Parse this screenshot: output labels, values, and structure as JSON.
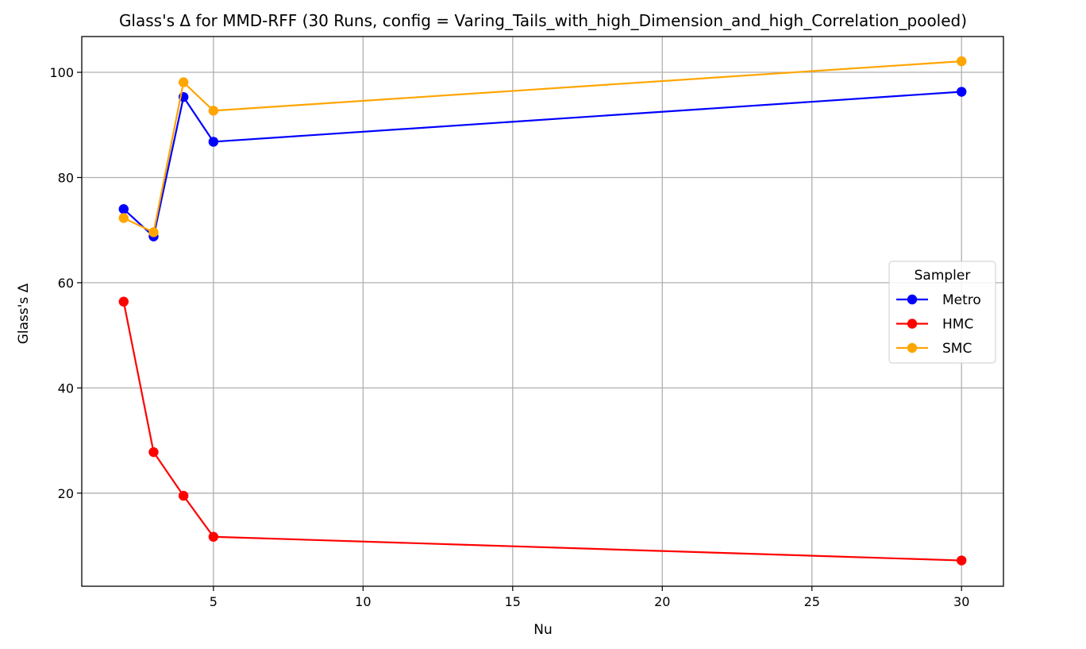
{
  "chart_data": {
    "type": "line",
    "title": "Glass's Δ for MMD-RFF (30 Runs, config = Varing_Tails_with_high_Dimension_and_high_Correlation_pooled)",
    "xlabel": "Nu",
    "ylabel": "Glass's Δ",
    "x": [
      2,
      3,
      4,
      5,
      30
    ],
    "xlim": [
      0.6,
      31.4
    ],
    "ylim": [
      2.3,
      106.8
    ],
    "xticks": [
      5,
      10,
      15,
      20,
      25,
      30
    ],
    "yticks": [
      20,
      40,
      60,
      80,
      100
    ],
    "grid": true,
    "legend": {
      "title": "Sampler",
      "placement": "center-right"
    },
    "series": [
      {
        "name": "Metro",
        "color": "#0000ff",
        "values": [
          74.0,
          68.8,
          95.3,
          86.8,
          96.3
        ]
      },
      {
        "name": "HMC",
        "color": "#ff0000",
        "values": [
          56.4,
          27.8,
          19.5,
          11.7,
          7.2
        ]
      },
      {
        "name": "SMC",
        "color": "#ffa500",
        "values": [
          72.3,
          69.6,
          98.1,
          92.7,
          102.1
        ]
      }
    ]
  }
}
